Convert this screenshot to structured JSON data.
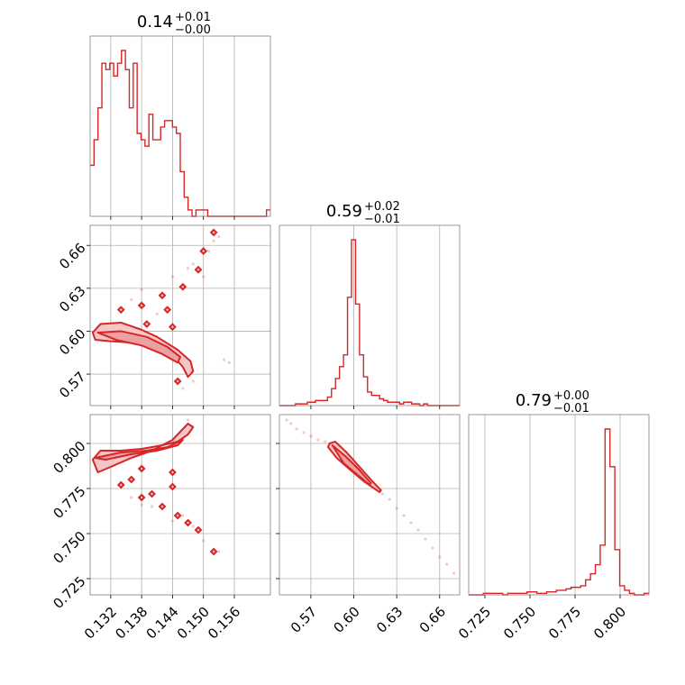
{
  "chart_data": {
    "type": "corner",
    "color": "#d62728",
    "parameters": [
      {
        "title": {
          "value": "0.14",
          "plus": "+0.01",
          "minus": "−0.00"
        },
        "range": [
          0.128,
          0.163
        ],
        "ticks": [
          0.132,
          0.138,
          0.144,
          0.15,
          0.156
        ],
        "tick_labels": [
          "0.132",
          "0.138",
          "0.144",
          "0.150",
          "0.156"
        ]
      },
      {
        "title": {
          "value": "0.59",
          "plus": "+0.02",
          "minus": "−0.01"
        },
        "range": [
          0.548,
          0.674
        ],
        "ticks": [
          0.57,
          0.6,
          0.63,
          0.66
        ],
        "tick_labels": [
          "0.57",
          "0.60",
          "0.63",
          "0.66"
        ]
      },
      {
        "title": {
          "value": "0.79",
          "plus": "+0.00",
          "minus": "−0.01"
        },
        "range": [
          0.716,
          0.816
        ],
        "ticks": [
          0.725,
          0.75,
          0.775,
          0.8
        ],
        "tick_labels": [
          "0.725",
          "0.750",
          "0.775",
          "0.800"
        ]
      }
    ],
    "histograms": [
      {
        "param": 0,
        "counts": [
          8,
          12,
          17,
          24,
          23,
          24,
          22,
          24,
          26,
          23,
          17,
          24,
          13,
          12,
          11,
          16,
          12,
          12,
          14,
          15,
          15,
          14,
          13,
          7,
          3,
          1,
          0,
          1,
          1,
          1,
          0,
          0,
          0,
          0,
          0,
          0,
          0,
          0,
          0,
          0,
          0,
          0,
          0,
          0,
          0,
          1
        ]
      },
      {
        "param": 1,
        "counts": [
          0,
          0,
          0,
          0,
          1,
          1,
          1,
          2,
          2,
          3,
          3,
          3,
          5,
          10,
          16,
          23,
          30,
          64,
          98,
          60,
          30,
          17,
          8,
          6,
          6,
          4,
          3,
          2,
          2,
          2,
          1,
          2,
          2,
          1,
          1,
          0,
          1,
          0,
          0,
          0,
          0,
          0,
          0,
          0,
          0
        ]
      },
      {
        "param": 2,
        "counts": [
          0,
          0,
          0,
          1,
          1,
          1,
          1,
          0,
          1,
          1,
          1,
          1,
          2,
          2,
          1,
          1,
          2,
          2,
          3,
          3,
          4,
          5,
          5,
          6,
          10,
          14,
          20,
          33,
          110,
          85,
          30,
          6,
          3,
          1,
          0,
          0,
          1
        ]
      }
    ],
    "scatter_panels": [
      {
        "x_param": 0,
        "y_param": 1,
        "contours": [
          {
            "level": "outer",
            "x": [
              0.1285,
              0.13,
              0.134,
              0.138,
              0.141,
              0.145,
              0.1475,
              0.148,
              0.147,
              0.146,
              0.144,
              0.14,
              0.136,
              0.132,
              0.129,
              0.1285
            ],
            "y": [
              0.599,
              0.605,
              0.606,
              0.601,
              0.596,
              0.587,
              0.579,
              0.572,
              0.568,
              0.575,
              0.583,
              0.589,
              0.592,
              0.593,
              0.594,
              0.599
            ]
          },
          {
            "level": "inner",
            "x": [
              0.1295,
              0.134,
              0.139,
              0.143,
              0.1455,
              0.145,
              0.142,
              0.138,
              0.133,
              0.1295
            ],
            "y": [
              0.599,
              0.6,
              0.596,
              0.589,
              0.582,
              0.578,
              0.584,
              0.59,
              0.594,
              0.599
            ]
          }
        ],
        "islands": [
          [
            0.134,
            0.615
          ],
          [
            0.138,
            0.618
          ],
          [
            0.139,
            0.605
          ],
          [
            0.142,
            0.625
          ],
          [
            0.143,
            0.615
          ],
          [
            0.146,
            0.631
          ],
          [
            0.144,
            0.603
          ],
          [
            0.15,
            0.656
          ],
          [
            0.152,
            0.669
          ],
          [
            0.149,
            0.643
          ],
          [
            0.145,
            0.565
          ]
        ],
        "points": [
          [
            0.138,
            0.629
          ],
          [
            0.144,
            0.638
          ],
          [
            0.147,
            0.644
          ],
          [
            0.148,
            0.647
          ],
          [
            0.152,
            0.663
          ],
          [
            0.151,
            0.656
          ],
          [
            0.153,
            0.666
          ],
          [
            0.15,
            0.638
          ],
          [
            0.141,
            0.612
          ],
          [
            0.136,
            0.622
          ],
          [
            0.154,
            0.58
          ],
          [
            0.155,
            0.578
          ],
          [
            0.148,
            0.565
          ],
          [
            0.146,
            0.56
          ]
        ]
      },
      {
        "x_param": 0,
        "y_param": 2,
        "contours": [
          {
            "level": "outer",
            "x": [
              0.1285,
              0.13,
              0.134,
              0.138,
              0.142,
              0.145,
              0.147,
              0.148,
              0.147,
              0.144,
              0.14,
              0.136,
              0.132,
              0.1295,
              0.1285
            ],
            "y": [
              0.791,
              0.796,
              0.796,
              0.797,
              0.799,
              0.801,
              0.805,
              0.809,
              0.811,
              0.802,
              0.796,
              0.792,
              0.787,
              0.784,
              0.791
            ]
          },
          {
            "level": "inner",
            "x": [
              0.129,
              0.134,
              0.139,
              0.143,
              0.146,
              0.145,
              0.141,
              0.136,
              0.131,
              0.129
            ],
            "y": [
              0.792,
              0.795,
              0.796,
              0.798,
              0.802,
              0.799,
              0.796,
              0.794,
              0.791,
              0.792
            ]
          }
        ],
        "islands": [
          [
            0.134,
            0.777
          ],
          [
            0.136,
            0.78
          ],
          [
            0.138,
            0.77
          ],
          [
            0.14,
            0.772
          ],
          [
            0.142,
            0.765
          ],
          [
            0.144,
            0.776
          ],
          [
            0.145,
            0.76
          ],
          [
            0.147,
            0.756
          ],
          [
            0.149,
            0.752
          ],
          [
            0.152,
            0.74
          ],
          [
            0.138,
            0.786
          ],
          [
            0.144,
            0.784
          ]
        ],
        "points": [
          [
            0.138,
            0.766
          ],
          [
            0.144,
            0.757
          ],
          [
            0.148,
            0.754
          ],
          [
            0.15,
            0.746
          ],
          [
            0.153,
            0.74
          ],
          [
            0.147,
            0.813
          ],
          [
            0.14,
            0.765
          ],
          [
            0.136,
            0.77
          ],
          [
            0.146,
            0.76
          ]
        ]
      },
      {
        "x_param": 1,
        "y_param": 2,
        "contours": [
          {
            "level": "outer",
            "x": [
              0.583,
              0.587,
              0.595,
              0.604,
              0.613,
              0.619,
              0.618,
              0.607,
              0.598,
              0.588,
              0.582,
              0.583
            ],
            "y": [
              0.8,
              0.801,
              0.795,
              0.787,
              0.779,
              0.774,
              0.773,
              0.779,
              0.785,
              0.792,
              0.798,
              0.8
            ]
          },
          {
            "level": "inner",
            "x": [
              0.585,
              0.594,
              0.603,
              0.612,
              0.611,
              0.602,
              0.593,
              0.585
            ],
            "y": [
              0.799,
              0.793,
              0.786,
              0.778,
              0.777,
              0.783,
              0.789,
              0.799
            ]
          }
        ],
        "islands": [],
        "points": [
          [
            0.553,
            0.813
          ],
          [
            0.556,
            0.811
          ],
          [
            0.56,
            0.808
          ],
          [
            0.565,
            0.806
          ],
          [
            0.57,
            0.804
          ],
          [
            0.575,
            0.802
          ],
          [
            0.58,
            0.801
          ],
          [
            0.62,
            0.772
          ],
          [
            0.625,
            0.769
          ],
          [
            0.63,
            0.764
          ],
          [
            0.635,
            0.76
          ],
          [
            0.64,
            0.756
          ],
          [
            0.645,
            0.752
          ],
          [
            0.65,
            0.747
          ],
          [
            0.655,
            0.742
          ],
          [
            0.66,
            0.737
          ],
          [
            0.665,
            0.733
          ],
          [
            0.67,
            0.728
          ]
        ]
      }
    ]
  }
}
